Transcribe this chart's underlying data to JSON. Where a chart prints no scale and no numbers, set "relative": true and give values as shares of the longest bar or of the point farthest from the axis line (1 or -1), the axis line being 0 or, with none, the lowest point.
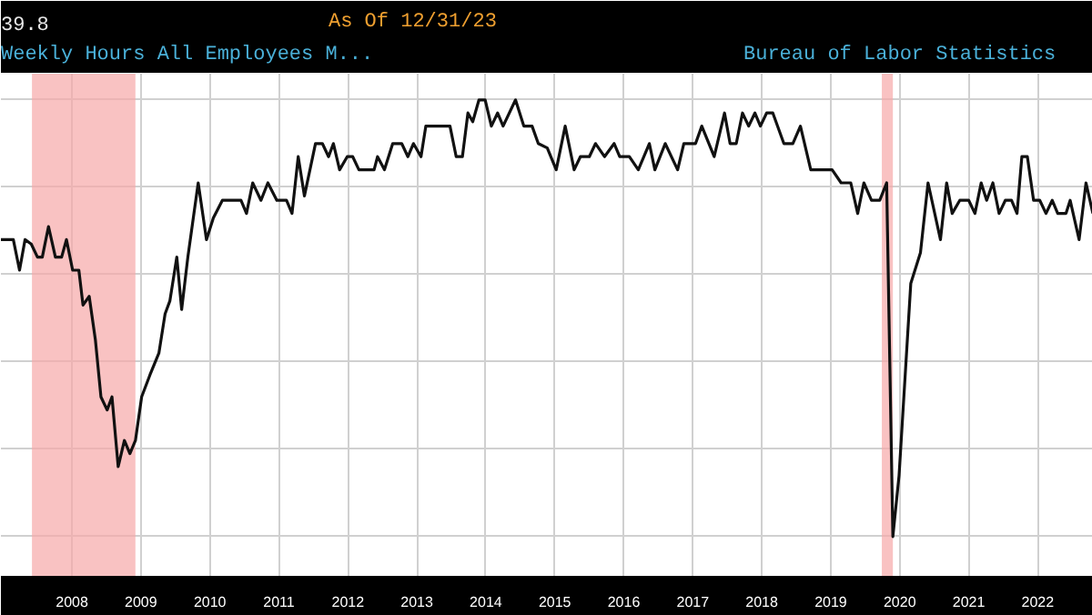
{
  "chart_data": {
    "type": "line",
    "title": "Weekly Hours All Employees M...",
    "relative": true,
    "grid": true,
    "annotations": [
      "39.8",
      "As Of 12/31/23",
      "Bureau of Labor Statistics"
    ],
    "xlim": [
      2007.47,
      2023.3
    ],
    "xticks": [
      {
        "value": 2008.5,
        "label": "2008"
      },
      {
        "value": 2009.5,
        "label": "2009"
      },
      {
        "value": 2010.5,
        "label": "2010"
      },
      {
        "value": 2011.5,
        "label": "2011"
      },
      {
        "value": 2012.5,
        "label": "2012"
      },
      {
        "value": 2013.5,
        "label": "2013"
      },
      {
        "value": 2014.5,
        "label": "2014"
      },
      {
        "value": 2015.5,
        "label": "2015"
      },
      {
        "value": 2016.5,
        "label": "2016"
      },
      {
        "value": 2017.5,
        "label": "2017"
      },
      {
        "value": 2018.5,
        "label": "2018"
      },
      {
        "value": 2019.5,
        "label": "2019"
      },
      {
        "value": 2020.5,
        "label": "2020"
      },
      {
        "value": 2021.5,
        "label": "2021"
      },
      {
        "value": 2022.5,
        "label": "2022"
      }
    ],
    "bands": [
      {
        "axis": "x",
        "from": 2007.92,
        "to": 2009.42,
        "color": "#f7a8a8"
      },
      {
        "axis": "x",
        "from": 2020.24,
        "to": 2020.4,
        "color": "#f7a8a8"
      }
    ],
    "series": [
      {
        "color": "#111111",
        "x": [
          2007.47,
          2007.65,
          2007.74,
          2007.82,
          2007.91,
          2008.0,
          2008.07,
          2008.16,
          2008.26,
          2008.35,
          2008.42,
          2008.51,
          2008.6,
          2008.66,
          2008.75,
          2008.84,
          2008.92,
          2009.01,
          2009.08,
          2009.17,
          2009.26,
          2009.34,
          2009.42,
          2009.51,
          2009.63,
          2009.76,
          2009.85,
          2009.92,
          2010.02,
          2010.09,
          2010.18,
          2010.33,
          2010.45,
          2010.55,
          2010.68,
          2010.95,
          2011.03,
          2011.12,
          2011.24,
          2011.34,
          2011.47,
          2011.61,
          2011.69,
          2011.78,
          2011.87,
          2012.03,
          2012.13,
          2012.22,
          2012.29,
          2012.38,
          2012.49,
          2012.57,
          2012.66,
          2012.88,
          2012.93,
          2013.03,
          2013.15,
          2013.28,
          2013.37,
          2013.45,
          2013.56,
          2013.63,
          2013.98,
          2014.07,
          2014.16,
          2014.24,
          2014.31,
          2014.4,
          2014.49,
          2014.58,
          2014.67,
          2014.75,
          2014.93,
          2015.05,
          2015.17,
          2015.26,
          2015.39,
          2015.52,
          2015.65,
          2015.78,
          2015.87,
          2016.0,
          2016.09,
          2016.22,
          2016.36,
          2016.44,
          2016.58,
          2016.71,
          2016.87,
          2016.95,
          2017.1,
          2017.28,
          2017.37,
          2017.54,
          2017.63,
          2017.81,
          2017.96,
          2018.04,
          2018.13,
          2018.22,
          2018.31,
          2018.4,
          2018.48,
          2018.57,
          2018.66,
          2018.82,
          2018.95,
          2019.06,
          2019.21,
          2019.52,
          2019.65,
          2019.79,
          2019.89,
          2019.98,
          2020.09,
          2020.21,
          2020.31,
          2020.4,
          2020.49,
          2020.66,
          2020.8,
          2020.91,
          2021.09,
          2021.18,
          2021.26,
          2021.37,
          2021.5,
          2021.59,
          2021.68,
          2021.76,
          2021.85,
          2021.94,
          2022.03,
          2022.12,
          2022.2,
          2022.27,
          2022.35,
          2022.44,
          2022.53,
          2022.62,
          2022.71,
          2022.79,
          2022.91,
          2022.97,
          2023.1,
          2023.2,
          2023.3
        ],
        "values": [
          0.68,
          0.68,
          0.61,
          0.68,
          0.67,
          0.64,
          0.64,
          0.71,
          0.64,
          0.64,
          0.68,
          0.61,
          0.61,
          0.53,
          0.55,
          0.45,
          0.32,
          0.29,
          0.32,
          0.16,
          0.22,
          0.19,
          0.22,
          0.32,
          0.37,
          0.42,
          0.51,
          0.54,
          0.64,
          0.52,
          0.64,
          0.81,
          0.68,
          0.73,
          0.77,
          0.77,
          0.74,
          0.81,
          0.77,
          0.81,
          0.77,
          0.77,
          0.74,
          0.87,
          0.78,
          0.9,
          0.9,
          0.87,
          0.9,
          0.84,
          0.87,
          0.87,
          0.84,
          0.84,
          0.87,
          0.84,
          0.9,
          0.9,
          0.87,
          0.9,
          0.87,
          0.94,
          0.94,
          0.87,
          0.87,
          0.97,
          0.95,
          1.0,
          1.0,
          0.94,
          0.97,
          0.94,
          1.0,
          0.94,
          0.94,
          0.9,
          0.89,
          0.84,
          0.94,
          0.84,
          0.87,
          0.87,
          0.9,
          0.87,
          0.9,
          0.87,
          0.87,
          0.84,
          0.9,
          0.84,
          0.9,
          0.84,
          0.9,
          0.9,
          0.94,
          0.87,
          0.97,
          0.9,
          0.9,
          0.97,
          0.94,
          0.97,
          0.94,
          0.97,
          0.97,
          0.9,
          0.9,
          0.94,
          0.84,
          0.84,
          0.81,
          0.81,
          0.74,
          0.81,
          0.77,
          0.77,
          0.81,
          0,
          0.14,
          0.58,
          0.65,
          0.81,
          0.68,
          0.81,
          0.74,
          0.77,
          0.77,
          0.74,
          0.81,
          0.77,
          0.81,
          0.74,
          0.77,
          0.77,
          0.74,
          0.87,
          0.87,
          0.77,
          0.77,
          0.74,
          0.77,
          0.74,
          0.74,
          0.77,
          0.68,
          0.81,
          0.74
        ]
      }
    ]
  }
}
